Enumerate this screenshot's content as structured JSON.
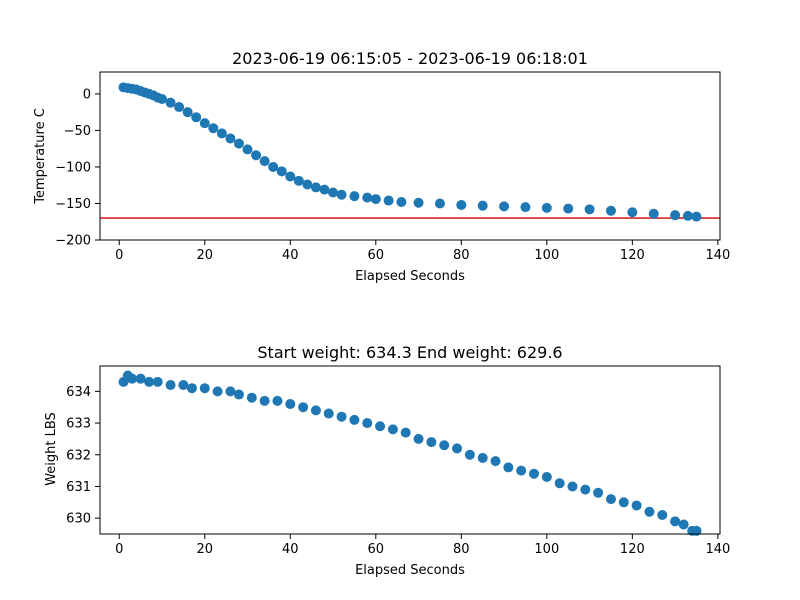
{
  "chart_data": [
    {
      "type": "scatter",
      "title": "2023-06-19 06:15:05 - 2023-06-19 06:18:01",
      "xlabel": "Elapsed Seconds",
      "ylabel": "Temperature C",
      "xlim": [
        -4.5,
        140.5
      ],
      "ylim": [
        -200,
        30
      ],
      "xticks": [
        0,
        20,
        40,
        60,
        80,
        100,
        120,
        140
      ],
      "yticks": [
        0,
        -50,
        -100,
        -150,
        -200
      ],
      "grid": false,
      "color": "#1f77b4",
      "threshold": {
        "y": -170,
        "color": "#d62728"
      },
      "series": [
        {
          "x": [
            1,
            2,
            3,
            4,
            5,
            6,
            7,
            8,
            9,
            10,
            12,
            14,
            16,
            18,
            20,
            22,
            24,
            26,
            28,
            30,
            32,
            34,
            36,
            38,
            40,
            42,
            44,
            46,
            48,
            50,
            52,
            55,
            58,
            60,
            63,
            66,
            70,
            75,
            80,
            85,
            90,
            95,
            100,
            105,
            110,
            115,
            120,
            125,
            130,
            133,
            135
          ],
          "y": [
            9,
            8,
            7,
            6,
            4,
            2,
            0,
            -2,
            -5,
            -7,
            -12,
            -18,
            -25,
            -32,
            -40,
            -47,
            -54,
            -61,
            -68,
            -76,
            -84,
            -92,
            -100,
            -106,
            -113,
            -119,
            -124,
            -128,
            -131,
            -135,
            -138,
            -140,
            -142,
            -144,
            -146,
            -148,
            -149,
            -150,
            -152,
            -153,
            -154,
            -155,
            -156,
            -157,
            -158,
            -160,
            -162,
            -164,
            -166,
            -167,
            -168
          ]
        }
      ]
    },
    {
      "type": "scatter",
      "title": "Start weight: 634.3 End weight: 629.6",
      "xlabel": "Elapsed Seconds",
      "ylabel": "Weight LBS",
      "xlim": [
        -4.5,
        140.5
      ],
      "ylim": [
        629.5,
        634.8
      ],
      "xticks": [
        0,
        20,
        40,
        60,
        80,
        100,
        120,
        140
      ],
      "yticks": [
        630,
        631,
        632,
        633,
        634
      ],
      "grid": false,
      "color": "#1f77b4",
      "series": [
        {
          "x": [
            1,
            2,
            3,
            5,
            7,
            9,
            12,
            15,
            17,
            20,
            23,
            26,
            28,
            31,
            34,
            37,
            40,
            43,
            46,
            49,
            52,
            55,
            58,
            61,
            64,
            67,
            70,
            73,
            76,
            79,
            82,
            85,
            88,
            91,
            94,
            97,
            100,
            103,
            106,
            109,
            112,
            115,
            118,
            121,
            124,
            127,
            130,
            132,
            134,
            135
          ],
          "y": [
            634.3,
            634.5,
            634.4,
            634.4,
            634.3,
            634.3,
            634.2,
            634.2,
            634.1,
            634.1,
            634.0,
            634.0,
            633.9,
            633.8,
            633.7,
            633.7,
            633.6,
            633.5,
            633.4,
            633.3,
            633.2,
            633.1,
            633.0,
            632.9,
            632.8,
            632.7,
            632.5,
            632.4,
            632.3,
            632.2,
            632.0,
            631.9,
            631.8,
            631.6,
            631.5,
            631.4,
            631.3,
            631.1,
            631.0,
            630.9,
            630.8,
            630.6,
            630.5,
            630.4,
            630.2,
            630.1,
            629.9,
            629.8,
            629.6,
            629.6
          ]
        }
      ]
    }
  ]
}
